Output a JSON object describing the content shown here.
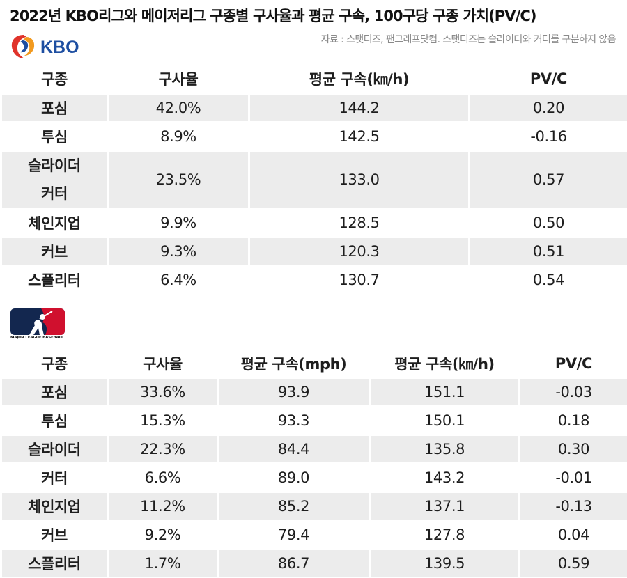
{
  "title": "2022년 KBO리그와 메이저리그 구종별 구사율과 평균 구속, 100구당 구종 가치(PV/C)",
  "source": "자료 : 스탯티즈, 팬그래프닷컴. 스탯티즈는 슬라이더와 커터를 구분하지 않음",
  "kbo": {
    "logo_text": "KBO",
    "headers": [
      "구종",
      "구사율",
      "평균 구속(㎞/h)",
      "PV/C"
    ],
    "rows": [
      {
        "pitch": "포심",
        "usage": "42.0%",
        "speed_kmh": "144.2",
        "pvc": "0.20"
      },
      {
        "pitch": "투심",
        "usage": "8.9%",
        "speed_kmh": "142.5",
        "pvc": "-0.16"
      },
      {
        "pitch": "슬라이더\n커터",
        "usage": "23.5%",
        "speed_kmh": "133.0",
        "pvc": "0.57"
      },
      {
        "pitch": "체인지업",
        "usage": "9.9%",
        "speed_kmh": "128.5",
        "pvc": "0.50"
      },
      {
        "pitch": "커브",
        "usage": "9.3%",
        "speed_kmh": "120.3",
        "pvc": "0.51"
      },
      {
        "pitch": "스플리터",
        "usage": "6.4%",
        "speed_kmh": "130.7",
        "pvc": "0.54"
      }
    ]
  },
  "mlb": {
    "logo_caption": "MAJOR LEAGUE BASEBALL",
    "headers": [
      "구종",
      "구사율",
      "평균 구속(mph)",
      "평균 구속(㎞/h)",
      "PV/C"
    ],
    "rows": [
      {
        "pitch": "포심",
        "usage": "33.6%",
        "speed_mph": "93.9",
        "speed_kmh": "151.1",
        "pvc": "-0.03"
      },
      {
        "pitch": "투심",
        "usage": "15.3%",
        "speed_mph": "93.3",
        "speed_kmh": "150.1",
        "pvc": "0.18"
      },
      {
        "pitch": "슬라이더",
        "usage": "22.3%",
        "speed_mph": "84.4",
        "speed_kmh": "135.8",
        "pvc": "0.30"
      },
      {
        "pitch": "커터",
        "usage": "6.6%",
        "speed_mph": "89.0",
        "speed_kmh": "143.2",
        "pvc": "-0.01"
      },
      {
        "pitch": "체인지업",
        "usage": "11.2%",
        "speed_mph": "85.2",
        "speed_kmh": "137.1",
        "pvc": "-0.13"
      },
      {
        "pitch": "커브",
        "usage": "9.2%",
        "speed_mph": "79.4",
        "speed_kmh": "127.8",
        "pvc": "0.04"
      },
      {
        "pitch": "스플리터",
        "usage": "1.7%",
        "speed_mph": "86.7",
        "speed_kmh": "139.5",
        "pvc": "0.59"
      }
    ]
  },
  "colors": {
    "row_shade": "#ececec",
    "kbo_blue": "#1d4ea1",
    "kbo_red": "#e0332b",
    "kbo_orange": "#f29a1f",
    "mlb_navy": "#13274f",
    "mlb_red": "#d0102e"
  }
}
